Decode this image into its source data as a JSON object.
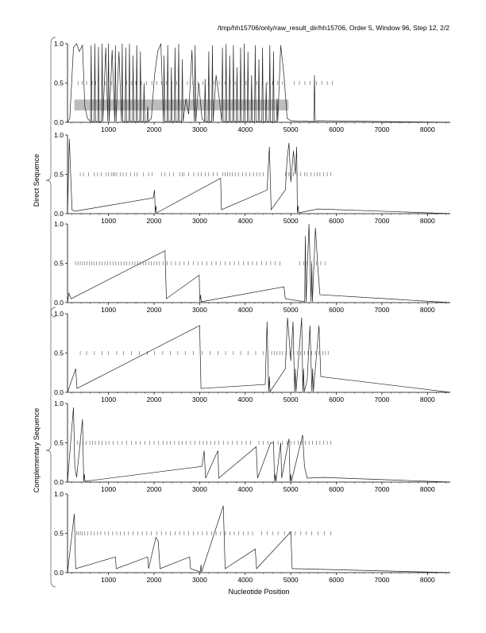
{
  "header": {
    "title": "/tmp/hh15706/only/raw_result_dir/hh15706, Order 5, Window 96, Step 12, 2/2"
  },
  "labels": {
    "xlabel": "Nucleotide Position",
    "group_direct": "Direct Sequence",
    "group_complementary": "Complementary Sequence"
  },
  "chart_data": {
    "type": "line",
    "title": "/tmp/hh15706/only/raw_result_dir/hh15706, Order 5, Window 96, Step 12, 2/2",
    "xlabel": "Nucleotide Position",
    "xlim": [
      100,
      8500
    ],
    "ylim": [
      0,
      1
    ],
    "x_ticks": [
      1000,
      2000,
      3000,
      4000,
      5000,
      6000,
      7000,
      8000
    ],
    "y_ticks": [
      "0.0",
      "0.5",
      "1.0"
    ],
    "groups": [
      {
        "name": "Direct Sequence",
        "panels": [
          0,
          1,
          2
        ]
      },
      {
        "name": "Complementary Sequence",
        "panels": [
          3,
          4,
          5
        ]
      }
    ],
    "panels": [
      {
        "frame": 1,
        "highlight": {
          "x_start": 250,
          "x_end": 4950,
          "y_start": 0.15,
          "y_end": 0.29
        },
        "peaks": [
          [
            150,
            0.05
          ],
          [
            230,
            0.95
          ],
          [
            300,
            1.0
          ],
          [
            360,
            0.9
          ],
          [
            430,
            0.98
          ],
          [
            480,
            0.2
          ],
          [
            540,
            0.05
          ],
          [
            620,
            0.98
          ],
          [
            700,
            1.0
          ],
          [
            780,
            0.96
          ],
          [
            860,
            1.0
          ],
          [
            940,
            0.95
          ],
          [
            1000,
            1.0
          ],
          [
            1080,
            0.92
          ],
          [
            1150,
            0.98
          ],
          [
            1230,
            0.9
          ],
          [
            1300,
            1.0
          ],
          [
            1380,
            0.95
          ],
          [
            1460,
            1.0
          ],
          [
            1540,
            0.85
          ],
          [
            1620,
            0.98
          ],
          [
            1700,
            0.9
          ],
          [
            1780,
            0.5
          ],
          [
            1860,
            0.2
          ],
          [
            1940,
            0.05
          ],
          [
            2010,
            0.6
          ],
          [
            2080,
            0.9
          ],
          [
            2150,
            1.0
          ],
          [
            2220,
            0.85
          ],
          [
            2300,
            0.98
          ],
          [
            2380,
            0.7
          ],
          [
            2460,
            0.95
          ],
          [
            2540,
            1.0
          ],
          [
            2620,
            0.8
          ],
          [
            2700,
            0.3
          ],
          [
            2760,
            0.1
          ],
          [
            2830,
            0.92
          ],
          [
            2900,
            0.98
          ],
          [
            2980,
            0.5
          ],
          [
            3050,
            0.05
          ],
          [
            3120,
            0.55
          ],
          [
            3200,
            0.9
          ],
          [
            3280,
            0.98
          ],
          [
            3360,
            0.6
          ],
          [
            3430,
            0.3
          ],
          [
            3500,
            0.95
          ],
          [
            3580,
            1.0
          ],
          [
            3660,
            0.85
          ],
          [
            3740,
            0.98
          ],
          [
            3820,
            0.7
          ],
          [
            3900,
            0.95
          ],
          [
            3980,
            1.0
          ],
          [
            4060,
            0.9
          ],
          [
            4140,
            0.6
          ],
          [
            4220,
            0.98
          ],
          [
            4300,
            0.8
          ],
          [
            4380,
            0.95
          ],
          [
            4460,
            0.5
          ],
          [
            4540,
            0.98
          ],
          [
            4620,
            0.9
          ],
          [
            4700,
            0.3
          ],
          [
            4780,
            0.98
          ],
          [
            4850,
            0.6
          ],
          [
            4920,
            0.05
          ],
          [
            5000,
            0.02
          ],
          [
            5520,
            0.6
          ],
          [
            5600,
            0.02
          ]
        ],
        "orf_x": [
          [
            330,
            420,
            520,
            640,
            720,
            850,
            930,
            1060,
            1160,
            1290,
            1400,
            1510,
            1600,
            1720,
            1830,
            1950,
            2060,
            2160,
            2270,
            2390,
            2500,
            2620,
            2730,
            2850,
            2960,
            3070,
            3200,
            3320,
            3430,
            3560,
            3670,
            3780,
            3900,
            4020,
            4140,
            4260,
            4380,
            4490,
            4600,
            4710,
            4820
          ],
          [
            5080,
            5190,
            5310,
            5420,
            5560,
            5680,
            5800,
            5910
          ]
        ]
      },
      {
        "frame": 2,
        "peaks": [
          [
            140,
            0.95
          ],
          [
            200,
            0.05
          ],
          [
            260,
            0.03
          ],
          [
            1980,
            0.2
          ],
          [
            2010,
            0.3
          ],
          [
            2040,
            0.1
          ],
          [
            3460,
            0.45
          ],
          [
            3480,
            0.05
          ],
          [
            4480,
            0.3
          ],
          [
            4530,
            0.85
          ],
          [
            4570,
            0.05
          ],
          [
            4880,
            0.3
          ],
          [
            4920,
            0.7
          ],
          [
            4960,
            0.9
          ],
          [
            5000,
            0.4
          ],
          [
            5060,
            0.8
          ],
          [
            5100,
            0.5
          ],
          [
            5130,
            0.85
          ],
          [
            5160,
            0.1
          ],
          [
            5600,
            0.06
          ]
        ],
        "orf_x": [
          [
            380,
            450,
            560,
            690,
            760,
            840,
            950,
            1000,
            1060,
            1100,
            1140,
            1180,
            1260,
            1320,
            1390,
            1480,
            1570,
            1630,
            1760,
            1880,
            1960,
            2160,
            2240,
            2340,
            2430,
            2560,
            2620,
            2660,
            2760,
            2870,
            2970,
            3040,
            3120,
            3200,
            3300,
            3390,
            3510,
            3560,
            3610,
            3660,
            3720,
            3780,
            3850,
            3940,
            4020,
            4100,
            4180,
            4260,
            4320,
            4400
          ],
          [
            4880,
            4960,
            5060,
            5140,
            5220,
            5300,
            5360,
            5440,
            5520,
            5580,
            5640,
            5720,
            5800,
            5880
          ]
        ]
      },
      {
        "frame": 3,
        "peaks": [
          [
            130,
            0.12
          ],
          [
            180,
            0.05
          ],
          [
            2240,
            0.66
          ],
          [
            2270,
            0.05
          ],
          [
            2990,
            0.35
          ],
          [
            3020,
            0.1
          ],
          [
            4850,
            0.2
          ],
          [
            4880,
            0.05
          ],
          [
            5320,
            0.85
          ],
          [
            5400,
            1.0
          ],
          [
            5460,
            0.5
          ],
          [
            5540,
            0.95
          ],
          [
            5600,
            0.4
          ],
          [
            5640,
            0.1
          ]
        ],
        "orf_x": [
          [
            280,
            330,
            380,
            430,
            480,
            530,
            580,
            630,
            680,
            740,
            800,
            860,
            920,
            980,
            1040,
            1100,
            1160,
            1220,
            1280,
            1340,
            1400,
            1460,
            1520,
            1580,
            1640,
            1700,
            1760,
            1820,
            1880,
            1940,
            2000,
            2060,
            2120,
            2200,
            2290,
            2380,
            2470,
            2560,
            2660,
            2760,
            2860,
            2960,
            3060,
            3160,
            3260,
            3360,
            3460,
            3560,
            3660,
            3760,
            3860,
            3960,
            4060,
            4160,
            4260,
            4360,
            4460,
            4560,
            4660,
            4760
          ],
          [
            5200,
            5280,
            5360,
            5460,
            5560,
            5660,
            5760
          ]
        ]
      },
      {
        "frame": 4,
        "peaks": [
          [
            280,
            0.3
          ],
          [
            310,
            0.05
          ],
          [
            3000,
            0.85
          ],
          [
            3030,
            0.05
          ],
          [
            4440,
            0.1
          ],
          [
            4480,
            0.9
          ],
          [
            4530,
            0.2
          ],
          [
            4880,
            0.3
          ],
          [
            4930,
            0.95
          ],
          [
            5000,
            0.4
          ],
          [
            5050,
            0.9
          ],
          [
            5100,
            0.3
          ],
          [
            5240,
            0.95
          ],
          [
            5280,
            0.3
          ],
          [
            5360,
            0.15
          ],
          [
            5420,
            0.85
          ],
          [
            5480,
            0.3
          ],
          [
            5620,
            0.85
          ],
          [
            5660,
            0.2
          ]
        ],
        "orf_x": [
          [
            380,
            520,
            690,
            860,
            1000,
            1180,
            1330,
            1500,
            1680,
            1850,
            2010,
            2190,
            2360,
            2520,
            2690,
            2860,
            3060,
            3230,
            3400,
            3570,
            3740,
            3900,
            4060,
            4230,
            4390
          ],
          [
            4580,
            4640,
            4700,
            4760,
            4820,
            4900,
            4980,
            5060,
            5140,
            5220,
            5300,
            5380,
            5460,
            5540,
            5620,
            5700,
            5760,
            5820
          ]
        ]
      },
      {
        "frame": 5,
        "peaks": [
          [
            230,
            0.95
          ],
          [
            260,
            0.2
          ],
          [
            300,
            0.06
          ],
          [
            430,
            0.8
          ],
          [
            470,
            0.1
          ],
          [
            3050,
            0.2
          ],
          [
            3100,
            0.4
          ],
          [
            3130,
            0.05
          ],
          [
            3400,
            0.4
          ],
          [
            3420,
            0.05
          ],
          [
            4240,
            0.45
          ],
          [
            4270,
            0.05
          ],
          [
            4560,
            0.5
          ],
          [
            4620,
            0.5
          ],
          [
            4660,
            0.1
          ],
          [
            4780,
            0.5
          ],
          [
            4800,
            0.05
          ],
          [
            4960,
            0.55
          ],
          [
            5000,
            0.1
          ],
          [
            5260,
            0.6
          ],
          [
            5300,
            0.2
          ],
          [
            5360,
            0.05
          ],
          [
            5720,
            0.06
          ]
        ],
        "orf_x": [
          [
            320,
            380,
            440,
            510,
            590,
            650,
            710,
            790,
            860,
            940,
            1010,
            1100,
            1200,
            1300,
            1400,
            1500,
            1600,
            1700,
            1800,
            1900,
            2000,
            2100,
            2200,
            2280,
            2360,
            2450,
            2540,
            2620,
            2700,
            2800,
            2900,
            3000,
            3080,
            3160,
            3240,
            3330,
            3420,
            3520,
            3620,
            3720,
            3820,
            3920,
            4020,
            4120
          ],
          [
            4300,
            4400,
            4500,
            4620,
            4720,
            4820,
            4920,
            5000,
            5080,
            5160,
            5240,
            5320,
            5400,
            5480,
            5560,
            5640,
            5720,
            5800,
            5880
          ]
        ]
      },
      {
        "frame": 6,
        "peaks": [
          [
            250,
            0.75
          ],
          [
            280,
            0.05
          ],
          [
            1150,
            0.2
          ],
          [
            1170,
            0.05
          ],
          [
            1860,
            0.2
          ],
          [
            1880,
            0.05
          ],
          [
            2040,
            0.45
          ],
          [
            2090,
            0.4
          ],
          [
            2130,
            0.05
          ],
          [
            2780,
            0.2
          ],
          [
            2800,
            0.05
          ],
          [
            3030,
            0.1
          ],
          [
            3520,
            0.85
          ],
          [
            3560,
            0.05
          ],
          [
            4220,
            0.3
          ],
          [
            4250,
            0.05
          ],
          [
            5000,
            0.52
          ],
          [
            5030,
            0.05
          ],
          [
            5100,
            0.05
          ]
        ],
        "orf_x": [
          [
            300,
            340,
            380,
            420,
            480,
            540,
            620,
            690,
            760,
            830,
            920,
            1000,
            1090,
            1180,
            1260,
            1350,
            1440,
            1540,
            1640,
            1740,
            1840,
            1940,
            2060,
            2160,
            2260,
            2360,
            2460,
            2560,
            2660,
            2760,
            2860,
            2960,
            3060,
            3160,
            3260,
            3360,
            3460,
            3560,
            3660,
            3760,
            3860,
            3960,
            4060,
            4160
          ],
          [
            4360,
            4480,
            4600,
            4720,
            4860,
            4980,
            5100,
            5220,
            5340,
            5460,
            5600,
            5740,
            5880
          ]
        ]
      }
    ]
  }
}
